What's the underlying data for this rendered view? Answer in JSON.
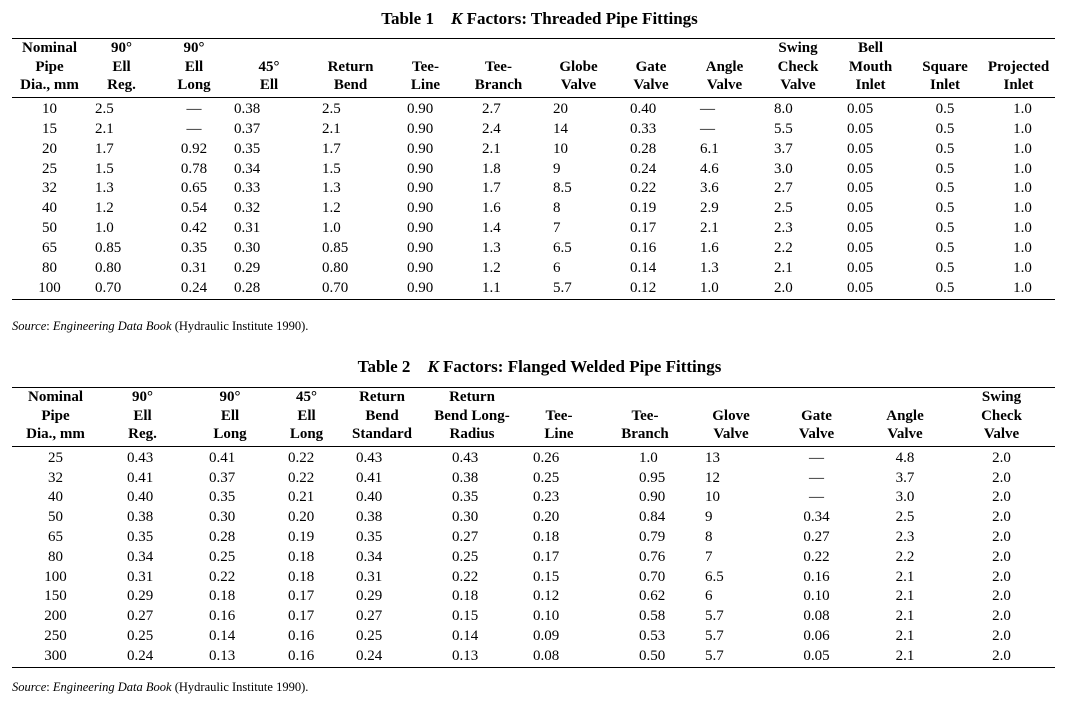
{
  "table1": {
    "title_num": "Table 1",
    "title_k": "K",
    "title_rest": " Factors: Threaded Pipe Fittings",
    "headers": [
      "Nominal\nPipe\nDia., mm",
      "90°\nEll\nReg.",
      "90°\nEll\nLong",
      "45°\nEll",
      "Return\nBend",
      "Tee-\nLine",
      "Tee-\nBranch",
      "Globe\nValve",
      "Gate\nValve",
      "Angle\nValve",
      "Swing\nCheck\nValve",
      "Bell\nMouth\nInlet",
      "Square\nInlet",
      "Projected\nInlet"
    ],
    "rows": [
      [
        "10",
        "2.5",
        "—",
        "0.38",
        "2.5",
        "0.90",
        "2.7",
        "20",
        "0.40",
        "—",
        "8.0",
        "0.05",
        "0.5",
        "1.0"
      ],
      [
        "15",
        "2.1",
        "—",
        "0.37",
        "2.1",
        "0.90",
        "2.4",
        "14",
        "0.33",
        "—",
        "5.5",
        "0.05",
        "0.5",
        "1.0"
      ],
      [
        "20",
        "1.7",
        "0.92",
        "0.35",
        "1.7",
        "0.90",
        "2.1",
        "10",
        "0.28",
        "6.1",
        "3.7",
        "0.05",
        "0.5",
        "1.0"
      ],
      [
        "25",
        "1.5",
        "0.78",
        "0.34",
        "1.5",
        "0.90",
        "1.8",
        "9",
        "0.24",
        "4.6",
        "3.0",
        "0.05",
        "0.5",
        "1.0"
      ],
      [
        "32",
        "1.3",
        "0.65",
        "0.33",
        "1.3",
        "0.90",
        "1.7",
        "8.5",
        "0.22",
        "3.6",
        "2.7",
        "0.05",
        "0.5",
        "1.0"
      ],
      [
        "40",
        "1.2",
        "0.54",
        "0.32",
        "1.2",
        "0.90",
        "1.6",
        "8",
        "0.19",
        "2.9",
        "2.5",
        "0.05",
        "0.5",
        "1.0"
      ],
      [
        "50",
        "1.0",
        "0.42",
        "0.31",
        "1.0",
        "0.90",
        "1.4",
        "7",
        "0.17",
        "2.1",
        "2.3",
        "0.05",
        "0.5",
        "1.0"
      ],
      [
        "65",
        "0.85",
        "0.35",
        "0.30",
        "0.85",
        "0.90",
        "1.3",
        "6.5",
        "0.16",
        "1.6",
        "2.2",
        "0.05",
        "0.5",
        "1.0"
      ],
      [
        "80",
        "0.80",
        "0.31",
        "0.29",
        "0.80",
        "0.90",
        "1.2",
        "6",
        "0.14",
        "1.3",
        "2.1",
        "0.05",
        "0.5",
        "1.0"
      ],
      [
        "100",
        "0.70",
        "0.24",
        "0.28",
        "0.70",
        "0.90",
        "1.1",
        "5.7",
        "0.12",
        "1.0",
        "2.0",
        "0.05",
        "0.5",
        "1.0"
      ]
    ],
    "source_label": "Source",
    "source_sep": ": ",
    "source_book": "Engineering Data Book",
    "source_rest": " (Hydraulic Institute 1990)."
  },
  "table2": {
    "title_num": "Table 2",
    "title_k": "K",
    "title_rest": " Factors: Flanged Welded Pipe Fittings",
    "headers": [
      "Nominal\nPipe\nDia., mm",
      "90°\nEll\nReg.",
      "90°\nEll\nLong",
      "45°\nEll\nLong",
      "Return\nBend\nStandard",
      "Return\nBend Long-\nRadius",
      "Tee-\nLine",
      "Tee-\nBranch",
      "Glove\nValve",
      "Gate\nValve",
      "Angle\nValve",
      "Swing\nCheck\nValve"
    ],
    "rows": [
      [
        "25",
        "0.43",
        "0.41",
        "0.22",
        "0.43",
        "0.43",
        "0.26",
        "1.0",
        "13",
        "—",
        "4.8",
        "2.0"
      ],
      [
        "32",
        "0.41",
        "0.37",
        "0.22",
        "0.41",
        "0.38",
        "0.25",
        "0.95",
        "12",
        "—",
        "3.7",
        "2.0"
      ],
      [
        "40",
        "0.40",
        "0.35",
        "0.21",
        "0.40",
        "0.35",
        "0.23",
        "0.90",
        "10",
        "—",
        "3.0",
        "2.0"
      ],
      [
        "50",
        "0.38",
        "0.30",
        "0.20",
        "0.38",
        "0.30",
        "0.20",
        "0.84",
        "9",
        "0.34",
        "2.5",
        "2.0"
      ],
      [
        "65",
        "0.35",
        "0.28",
        "0.19",
        "0.35",
        "0.27",
        "0.18",
        "0.79",
        "8",
        "0.27",
        "2.3",
        "2.0"
      ],
      [
        "80",
        "0.34",
        "0.25",
        "0.18",
        "0.34",
        "0.25",
        "0.17",
        "0.76",
        "7",
        "0.22",
        "2.2",
        "2.0"
      ],
      [
        "100",
        "0.31",
        "0.22",
        "0.18",
        "0.31",
        "0.22",
        "0.15",
        "0.70",
        "6.5",
        "0.16",
        "2.1",
        "2.0"
      ],
      [
        "150",
        "0.29",
        "0.18",
        "0.17",
        "0.29",
        "0.18",
        "0.12",
        "0.62",
        "6",
        "0.10",
        "2.1",
        "2.0"
      ],
      [
        "200",
        "0.27",
        "0.16",
        "0.17",
        "0.27",
        "0.15",
        "0.10",
        "0.58",
        "5.7",
        "0.08",
        "2.1",
        "2.0"
      ],
      [
        "250",
        "0.25",
        "0.14",
        "0.16",
        "0.25",
        "0.14",
        "0.09",
        "0.53",
        "5.7",
        "0.06",
        "2.1",
        "2.0"
      ],
      [
        "300",
        "0.24",
        "0.13",
        "0.16",
        "0.24",
        "0.13",
        "0.08",
        "0.50",
        "5.7",
        "0.05",
        "2.1",
        "2.0"
      ]
    ],
    "source_label": "Source",
    "source_sep": ": ",
    "source_book": "Engineering Data Book",
    "source_rest": " (Hydraulic Institute 1990)."
  }
}
